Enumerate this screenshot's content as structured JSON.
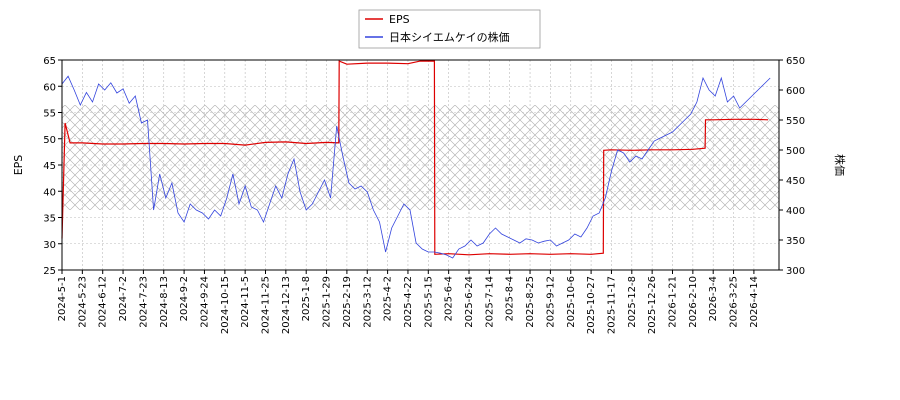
{
  "chart_data": {
    "type": "line",
    "legend": {
      "placement": "top-center",
      "entries": [
        "EPS",
        "日本シイエムケイの株価"
      ]
    },
    "ylabel_left": "EPS",
    "ylabel_right": "株価",
    "ylim_left": [
      25,
      65
    ],
    "ylim_right": [
      300,
      650
    ],
    "yticks_left": [
      "25",
      "30",
      "35",
      "40",
      "45",
      "50",
      "55",
      "60",
      "65"
    ],
    "yticks_right": [
      "300",
      "350",
      "400",
      "450",
      "500",
      "550",
      "600",
      "650"
    ],
    "xticks": [
      "2024-5-1",
      "2024-5-23",
      "2024-6-12",
      "2024-7-2",
      "2024-7-23",
      "2024-8-13",
      "2024-9-2",
      "2024-9-24",
      "2024-10-15",
      "2024-11-5",
      "2024-11-25",
      "2024-12-13",
      "2025-1-8",
      "2025-1-29",
      "2025-2-19",
      "2025-3-12",
      "2025-4-2",
      "2025-4-22",
      "2025-5-15",
      "2025-6-4",
      "2025-6-24",
      "2025-7-14",
      "2025-8-4",
      "2025-8-25",
      "2025-9-12",
      "2025-10-6",
      "2025-10-27",
      "2025-11-17",
      "2025-12-8",
      "2025-12-26",
      "2026-1-21",
      "2026-2-10",
      "2026-3-4",
      "2026-3-25",
      "2026-4-14"
    ],
    "band": {
      "y_from_right": 400,
      "y_to_right": 575,
      "pattern": "crosshatch"
    },
    "colors": {
      "eps": "#dd0000",
      "price": "#3344dd",
      "band": "#aaaaaa"
    },
    "series": [
      {
        "name": "EPS",
        "axis": "left",
        "x_tick_index": [
          0,
          0.15,
          0.4,
          1,
          2,
          3,
          4,
          5,
          6,
          7,
          8,
          9,
          10,
          11,
          12,
          13,
          13.6,
          13.62,
          14,
          15,
          16,
          17,
          17.6,
          18.3,
          18.32,
          19,
          20,
          21,
          22,
          23,
          24,
          25,
          26,
          26.6,
          26.62,
          27,
          28,
          29,
          30,
          31,
          31.6,
          31.62,
          32,
          33,
          34,
          34.7
        ],
        "values": [
          31,
          53,
          49.2,
          49.2,
          49.0,
          49.0,
          49.1,
          49.1,
          49.0,
          49.1,
          49.1,
          48.8,
          49.3,
          49.4,
          49.1,
          49.3,
          49.2,
          64.8,
          64.2,
          64.4,
          64.4,
          64.3,
          64.8,
          64.8,
          28.0,
          28.1,
          27.9,
          28.1,
          28.0,
          28.1,
          28.0,
          28.1,
          28.0,
          28.2,
          47.8,
          47.9,
          47.8,
          47.9,
          47.9,
          48.0,
          48.2,
          53.6,
          53.6,
          53.7,
          53.7,
          53.6
        ]
      },
      {
        "name": "日本シイエムケイの株価",
        "axis": "right",
        "x_tick_index": [
          0,
          0.3,
          0.6,
          0.9,
          1.2,
          1.5,
          1.8,
          2.1,
          2.4,
          2.7,
          3.0,
          3.3,
          3.6,
          3.9,
          4.2,
          4.5,
          4.8,
          5.1,
          5.4,
          5.7,
          6.0,
          6.3,
          6.6,
          6.9,
          7.2,
          7.5,
          7.8,
          8.1,
          8.4,
          8.7,
          9.0,
          9.3,
          9.6,
          9.9,
          10.2,
          10.5,
          10.8,
          11.1,
          11.4,
          11.7,
          12.0,
          12.3,
          12.6,
          12.9,
          13.2,
          13.5,
          13.8,
          14.1,
          14.4,
          14.7,
          15.0,
          15.3,
          15.6,
          15.9,
          16.2,
          16.5,
          16.8,
          17.1,
          17.4,
          17.7,
          18.0,
          18.3,
          18.6,
          18.9,
          19.2,
          19.5,
          19.8,
          20.1,
          20.4,
          20.7,
          21.0,
          21.3,
          21.6,
          21.9,
          22.2,
          22.5,
          22.8,
          23.1,
          23.4,
          23.7,
          24.0,
          24.3,
          24.6,
          24.9,
          25.2,
          25.5,
          25.8,
          26.1,
          26.4,
          26.7,
          27.0,
          27.3,
          27.6,
          27.9,
          28.2,
          28.5,
          28.8,
          29.1,
          29.4,
          29.7,
          30.0,
          30.3,
          30.6,
          30.9,
          31.2,
          31.5,
          31.8,
          32.1,
          32.4,
          32.7,
          33.0,
          33.3,
          33.6,
          33.9,
          34.2,
          34.5,
          34.8
        ],
        "values": [
          610,
          623,
          600,
          575,
          596,
          580,
          610,
          600,
          612,
          595,
          602,
          578,
          590,
          545,
          550,
          400,
          460,
          420,
          445,
          395,
          380,
          410,
          400,
          395,
          385,
          400,
          390,
          420,
          460,
          410,
          440,
          405,
          400,
          380,
          410,
          440,
          420,
          460,
          485,
          430,
          400,
          410,
          430,
          450,
          420,
          540,
          490,
          445,
          435,
          440,
          430,
          400,
          380,
          330,
          370,
          390,
          410,
          400,
          345,
          335,
          330,
          330,
          328,
          325,
          320,
          335,
          340,
          350,
          340,
          345,
          360,
          370,
          360,
          355,
          350,
          345,
          352,
          350,
          345,
          348,
          350,
          340,
          345,
          350,
          360,
          355,
          370,
          390,
          395,
          420,
          465,
          500,
          495,
          480,
          490,
          485,
          500,
          515,
          520,
          525,
          530,
          540,
          550,
          560,
          580,
          620,
          600,
          590,
          620,
          580,
          590,
          570,
          580,
          590,
          600,
          610,
          620
        ]
      }
    ]
  }
}
